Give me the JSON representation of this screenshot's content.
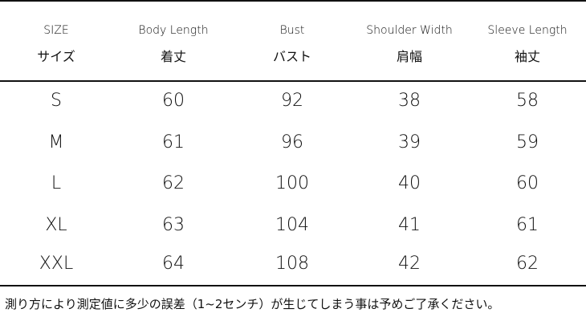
{
  "headers": [
    {
      "en": "SIZE",
      "ja": "サイズ"
    },
    {
      "en": "Body Length",
      "ja": "着丈"
    },
    {
      "en": "Bust",
      "ja": "バスト"
    },
    {
      "en": "Shoulder Width",
      "ja": "肩幅"
    },
    {
      "en": "Sleeve Length",
      "ja": "袖丈"
    }
  ],
  "rows": [
    [
      "S",
      "60",
      "92",
      "38",
      "58"
    ],
    [
      "M",
      "61",
      "96",
      "39",
      "59"
    ],
    [
      "L",
      "62",
      "100",
      "40",
      "60"
    ],
    [
      "XL",
      "63",
      "104",
      "41",
      "61"
    ],
    [
      "XXL",
      "64",
      "108",
      "42",
      "62"
    ]
  ],
  "note": "測り方により測定値に多少の誤差（1~2センチ）が生じてしまう事は予めご了承ください。"
}
